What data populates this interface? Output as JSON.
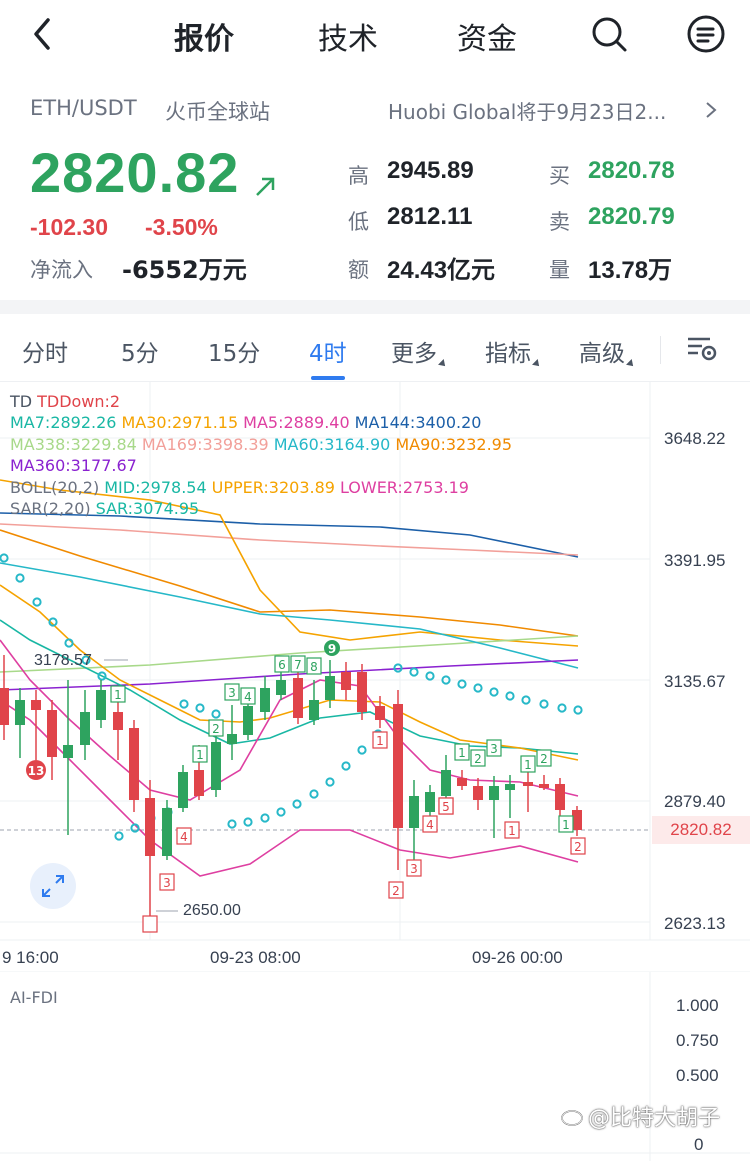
{
  "nav": {
    "tabs": [
      "报价",
      "技术",
      "资金"
    ],
    "active_tab": "报价",
    "icons": [
      "back-icon",
      "search-icon",
      "menu-icon"
    ]
  },
  "header": {
    "pair": "ETH/USDT",
    "exchange": "火币全球站",
    "notice": "Huobi Global将于9月23日2..."
  },
  "quote": {
    "price": "2820.82",
    "change": "-102.30",
    "change_pct": "-3.50%",
    "net_flow_label": "净流入",
    "net_flow": "-6552万元",
    "high_label": "高",
    "high": "2945.89",
    "low_label": "低",
    "low": "2812.11",
    "amount_label": "额",
    "amount": "24.43亿元",
    "bid_label": "买",
    "bid": "2820.78",
    "ask_label": "卖",
    "ask": "2820.79",
    "volume_label": "量",
    "volume": "13.78万"
  },
  "period_tabs": {
    "items": [
      "分时",
      "5分",
      "15分",
      "4时",
      "更多",
      "指标",
      "高级"
    ],
    "active": "4时"
  },
  "indicators": {
    "line1": [
      "TD",
      "TDDown:2"
    ],
    "line2": [
      "MA7:2892.26",
      "MA30:2971.15",
      "MA5:2889.40",
      "MA144:3400.20"
    ],
    "line3": [
      "MA338:3229.84",
      "MA169:3398.39",
      "MA60:3164.90",
      "MA90:3232.95"
    ],
    "line4": [
      "MA360:3177.67"
    ],
    "line5": [
      "BOLL(20,2)",
      "MID:2978.54",
      "UPPER:3203.89",
      "LOWER:2753.19"
    ],
    "line6": [
      "SAR(2,20)",
      "SAR:3074.95"
    ]
  },
  "chart": {
    "y_ticks": [
      "3648.22",
      "3391.95",
      "3135.67",
      "2879.40",
      "2623.13"
    ],
    "x_ticks": [
      "9 16:00",
      "09-23 08:00",
      "09-26 00:00"
    ],
    "current_price_tag": "2820.82",
    "high_note": "3178.57",
    "low_note": "2650.00",
    "colors": {
      "up": "#2ea35f",
      "down": "#e0444a",
      "ma7": "#19b7a4",
      "ma30": "#f5a300",
      "ma5": "#de3fa1",
      "ma144": "#1c5fa8",
      "ma338": "#a8d98a",
      "ma169": "#f2a09a",
      "ma60": "#26b8c8",
      "ma90": "#f08a00",
      "ma360": "#8a22d0",
      "boll": "#6b7280",
      "upper": "#f5a300",
      "lower": "#de3fa1",
      "sar": "#26b8c8"
    },
    "td_markers": [
      {
        "label": "1"
      },
      {
        "label": "1"
      },
      {
        "label": "1"
      },
      {
        "label": "2"
      },
      {
        "label": "3"
      },
      {
        "label": "4"
      },
      {
        "label": "5"
      },
      {
        "label": "6"
      },
      {
        "label": "7"
      },
      {
        "label": "8"
      },
      {
        "label": "9"
      },
      {
        "label": "1"
      },
      {
        "label": "2"
      },
      {
        "label": "3"
      },
      {
        "label": "4"
      },
      {
        "label": "5"
      },
      {
        "label": "1"
      },
      {
        "label": "2"
      },
      {
        "label": "3"
      },
      {
        "label": "1"
      },
      {
        "label": "2"
      },
      {
        "label": "13"
      },
      {
        "label": "1"
      },
      {
        "label": "2"
      },
      {
        "label": "3"
      },
      {
        "label": "4"
      }
    ]
  },
  "fdi": {
    "label": "AI-FDI",
    "y_ticks": [
      "1.000",
      "0.750",
      "0.500",
      "0"
    ]
  },
  "watermark": "@比特大胡子"
}
